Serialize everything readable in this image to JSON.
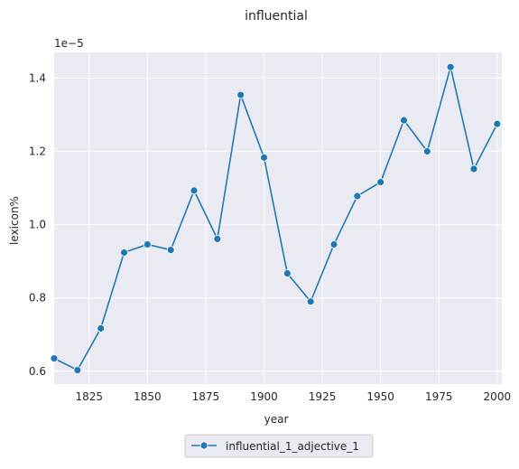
{
  "chart_data": {
    "type": "line",
    "title": "influential",
    "xlabel": "year",
    "ylabel": "lexicon%",
    "y_offset_label": "1e−5",
    "x_ticks": [
      1825,
      1850,
      1875,
      1900,
      1925,
      1950,
      1975,
      2000
    ],
    "y_ticks": [
      0.6,
      0.8,
      1.0,
      1.2,
      1.4
    ],
    "y_tick_labels": [
      "0.6",
      "0.8",
      "1.0",
      "1.2",
      "1.4"
    ],
    "xlim": [
      1810,
      2002
    ],
    "ylim": [
      0.565,
      1.47
    ],
    "grid": true,
    "legend_placement": "bottom-center",
    "series": [
      {
        "name": "influential_1_adjective_1",
        "color": "#1f77b4",
        "x": [
          1810,
          1820,
          1830,
          1840,
          1850,
          1860,
          1870,
          1880,
          1890,
          1900,
          1910,
          1920,
          1930,
          1940,
          1950,
          1960,
          1970,
          1980,
          1990,
          2000
        ],
        "y": [
          0.635,
          0.603,
          0.717,
          0.924,
          0.946,
          0.931,
          1.093,
          0.961,
          1.354,
          1.183,
          0.867,
          0.79,
          0.946,
          1.078,
          1.116,
          1.285,
          1.2,
          1.43,
          1.152,
          1.275
        ]
      }
    ]
  }
}
